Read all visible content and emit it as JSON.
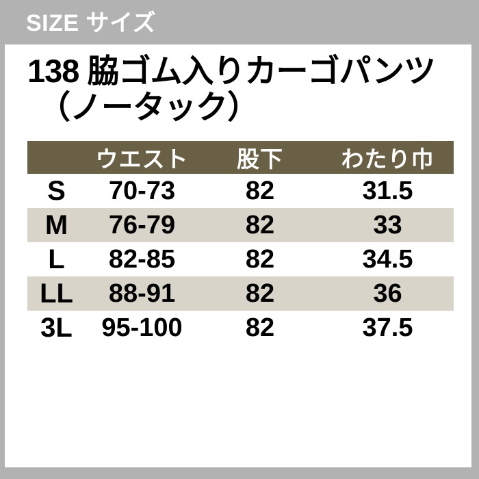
{
  "header": {
    "label": "SIZE サイズ"
  },
  "product": {
    "title_line1": "138 脇ゴム入りカーゴパンツ",
    "title_line2": "（ノータック）"
  },
  "chart_data": {
    "type": "table",
    "title": "138 脇ゴム入りカーゴパンツ（ノータック）",
    "columns": [
      "",
      "ウエスト",
      "股下",
      "わたり巾"
    ],
    "rows": [
      [
        "S",
        "70-73",
        "82",
        "31.5"
      ],
      [
        "M",
        "76-79",
        "82",
        "33"
      ],
      [
        "L",
        "82-85",
        "82",
        "34.5"
      ],
      [
        "LL",
        "88-91",
        "82",
        "36"
      ],
      [
        "3L",
        "95-100",
        "82",
        "37.5"
      ]
    ],
    "layout": {
      "stripe_rows": [
        1,
        3
      ],
      "header_position": "top"
    }
  },
  "colors": {
    "page_bg": "#b2b2b2",
    "card_bg": "#ffffff",
    "table_header_bg": "#6a6045",
    "table_header_text": "#ffffff",
    "stripe_row_bg": "#d8d4ca",
    "body_text": "#000000",
    "size_header_text": "#ffffff"
  }
}
